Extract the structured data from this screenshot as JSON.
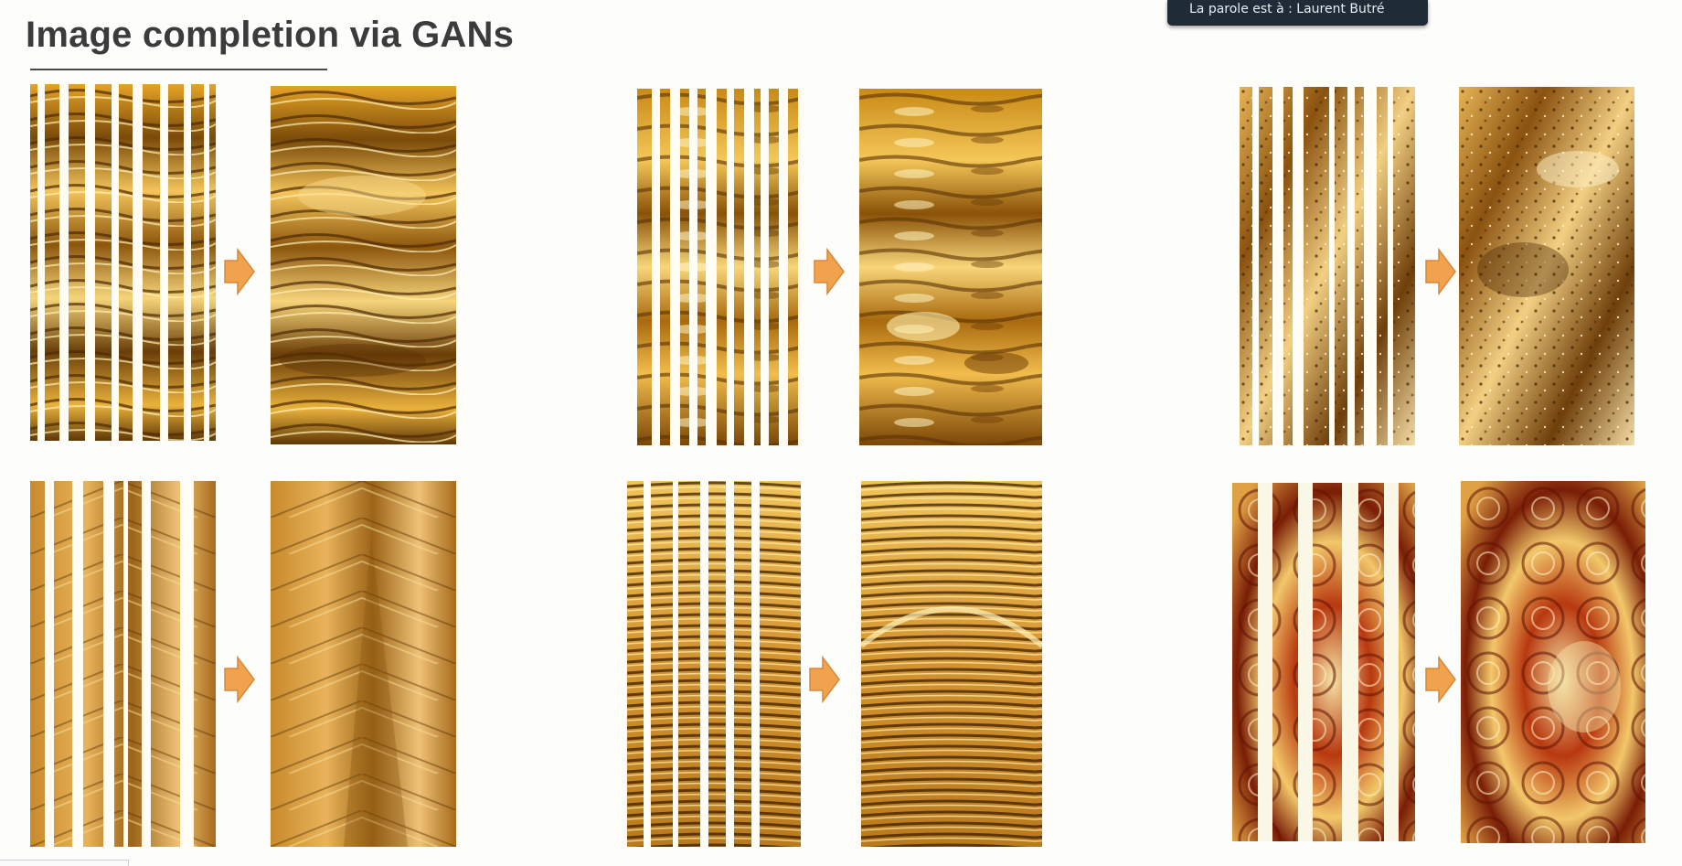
{
  "slide": {
    "title": "Image completion via GANs"
  },
  "overlay": {
    "speaker_text": "La parole est à : Laurent Butré"
  },
  "colors": {
    "arrow": "#f0a24c",
    "arrow_stroke": "#d9873a",
    "gap_fill": "#fffdf4"
  },
  "examples": [
    {
      "name": "example-1",
      "palette": "amber"
    },
    {
      "name": "example-2",
      "palette": "amber-dark"
    },
    {
      "name": "example-3",
      "palette": "brown-speckle"
    },
    {
      "name": "example-4",
      "palette": "tan"
    },
    {
      "name": "example-5",
      "palette": "seismic"
    },
    {
      "name": "example-6",
      "palette": "red-heat"
    }
  ]
}
